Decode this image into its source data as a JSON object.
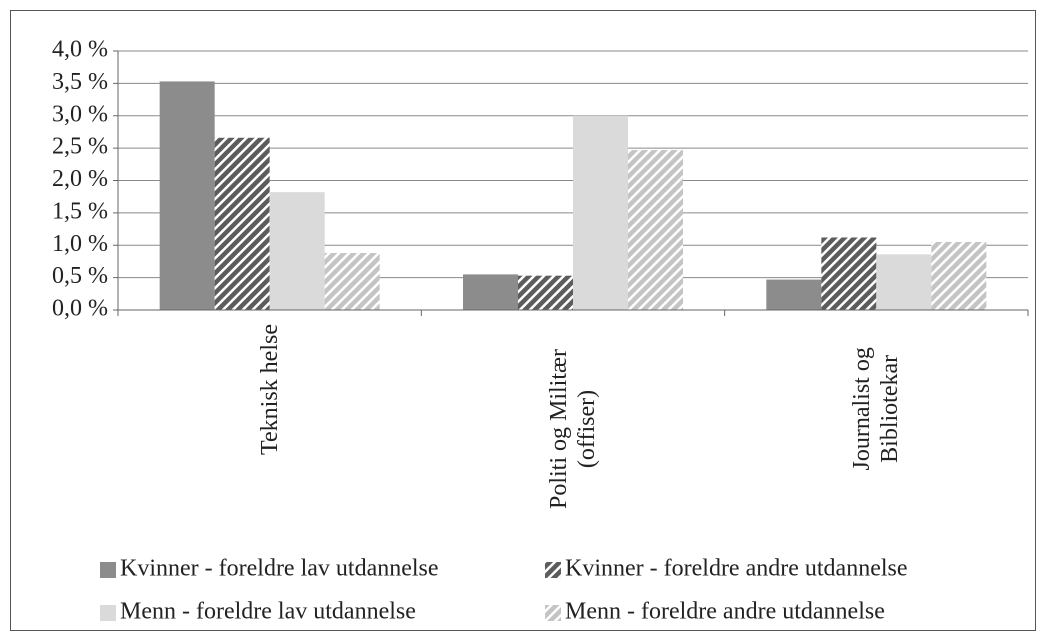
{
  "chart_data": {
    "type": "bar",
    "categories": [
      "Teknisk helse",
      "Politi og Militær (offiser)",
      "Journalist og Bibliotekar"
    ],
    "series": [
      {
        "name": "Kvinner - foreldre lav utdannelse",
        "color": "#8c8c8c",
        "pattern": "solid",
        "values": [
          3.53,
          0.55,
          0.47
        ]
      },
      {
        "name": "Kvinner - foreldre andre utdannelse",
        "color": "#5c5c5c",
        "pattern": "hatch",
        "values": [
          2.66,
          0.53,
          1.12
        ]
      },
      {
        "name": "Menn - foreldre lav utdannelse",
        "color": "#dadada",
        "pattern": "solid",
        "values": [
          1.82,
          3.0,
          0.86
        ]
      },
      {
        "name": "Menn - foreldre andre utdannelse",
        "color": "#c4c4c4",
        "pattern": "hatch",
        "values": [
          0.88,
          2.47,
          1.05
        ]
      }
    ],
    "ylim": [
      0,
      4
    ],
    "yticks": [
      {
        "value": 0,
        "label": "0,0 %"
      },
      {
        "value": 0.5,
        "label": "0,5 %"
      },
      {
        "value": 1,
        "label": "1,0 %"
      },
      {
        "value": 1.5,
        "label": "1,5 %"
      },
      {
        "value": 2,
        "label": "2,0 %"
      },
      {
        "value": 2.5,
        "label": "2,5 %"
      },
      {
        "value": 3,
        "label": "3,0 %"
      },
      {
        "value": 3.5,
        "label": "3,5 %"
      },
      {
        "value": 4,
        "label": "4,0 %"
      }
    ],
    "grid": true
  }
}
